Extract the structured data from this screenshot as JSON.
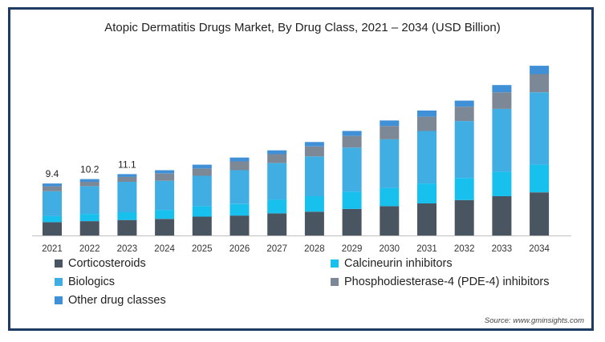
{
  "chart_data": {
    "type": "bar",
    "stacked": true,
    "title": "Atopic Dermatitis Drugs Market, By Drug Class, 2021 – 2034 (USD Billion)",
    "xlabel": "",
    "ylabel": "",
    "grid": false,
    "legend_position": "bottom",
    "categories": [
      "2021",
      "2022",
      "2023",
      "2024",
      "2025",
      "2026",
      "2027",
      "2028",
      "2029",
      "2030",
      "2031",
      "2032",
      "2033",
      "2034"
    ],
    "series": [
      {
        "name": "Corticosteroids",
        "color": "#4a5562",
        "values": [
          2.4,
          2.6,
          2.8,
          3.0,
          3.4,
          3.6,
          4.0,
          4.3,
          4.8,
          5.3,
          5.8,
          6.4,
          7.1,
          7.8
        ]
      },
      {
        "name": "Calcineurin inhibitors",
        "color": "#18c0ee",
        "values": [
          1.1,
          1.3,
          1.4,
          1.6,
          1.9,
          2.1,
          2.5,
          2.8,
          3.1,
          3.3,
          3.6,
          4.0,
          4.4,
          5.0
        ]
      },
      {
        "name": "Biologics",
        "color": "#41aee3",
        "values": [
          4.5,
          5.0,
          5.5,
          5.3,
          5.5,
          6.1,
          6.6,
          7.2,
          8.0,
          8.8,
          9.5,
          10.3,
          11.4,
          13.1
        ]
      },
      {
        "name": "Phosphodiesterase-4 (PDE-4) inhibitors",
        "color": "#7d8896",
        "values": [
          0.9,
          0.8,
          0.9,
          1.3,
          1.3,
          1.6,
          1.6,
          1.8,
          2.1,
          2.4,
          2.6,
          2.6,
          3.0,
          3.3
        ]
      },
      {
        "name": "Other drug classes",
        "color": "#3f90d6",
        "values": [
          0.5,
          0.5,
          0.5,
          0.6,
          0.7,
          0.7,
          0.7,
          0.8,
          0.9,
          1.0,
          1.1,
          1.1,
          1.3,
          1.5
        ]
      }
    ],
    "annotations": [
      {
        "category": "2021",
        "label": "9.4"
      },
      {
        "category": "2022",
        "label": "10.2"
      },
      {
        "category": "2023",
        "label": "11.1"
      }
    ],
    "ylim": [
      0,
      31
    ]
  },
  "source_text": "Source: www.gminsights.com"
}
